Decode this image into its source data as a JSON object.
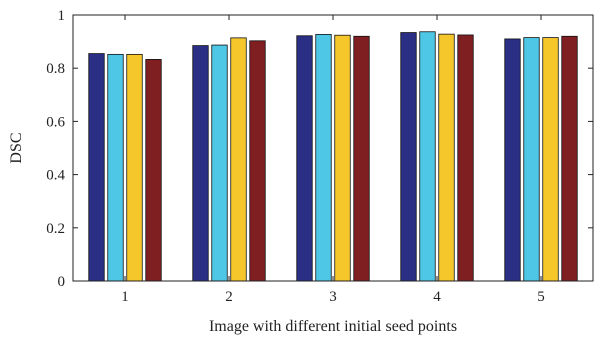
{
  "chart_data": {
    "type": "bar",
    "categories": [
      "1",
      "2",
      "3",
      "4",
      "5"
    ],
    "series": [
      {
        "color": "#2a2f85",
        "values": [
          0.855,
          0.885,
          0.922,
          0.934,
          0.91
        ]
      },
      {
        "color": "#4ec6e6",
        "values": [
          0.852,
          0.887,
          0.927,
          0.937,
          0.915
        ]
      },
      {
        "color": "#f6c72b",
        "values": [
          0.852,
          0.914,
          0.924,
          0.928,
          0.915
        ]
      },
      {
        "color": "#7f1f22",
        "values": [
          0.833,
          0.903,
          0.92,
          0.925,
          0.92
        ]
      }
    ],
    "title": "",
    "xlabel": "Image with different initial seed points",
    "ylabel": "DSC",
    "ylim": [
      0,
      1
    ],
    "yticks": [
      "0",
      "0.2",
      "0.4",
      "0.6",
      "0.8",
      "1"
    ],
    "grid": false,
    "legend": "none"
  }
}
